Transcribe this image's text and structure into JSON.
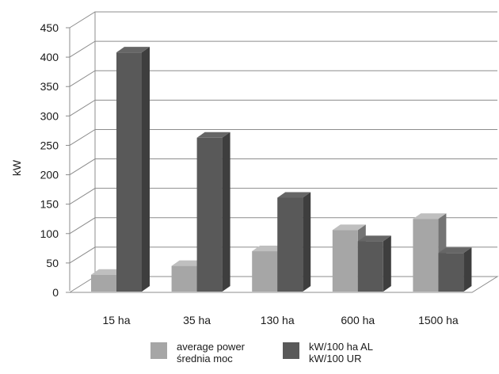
{
  "chart_data": {
    "type": "bar",
    "style": "3d-clustered-column",
    "ylabel": "kW",
    "xlabel": "",
    "ylim": [
      0,
      450
    ],
    "yticks": [
      "0",
      "50",
      "100",
      "150",
      "200",
      "250",
      "300",
      "350",
      "400",
      "450"
    ],
    "grid": true,
    "legend_position": "bottom",
    "categories": [
      "15 ha",
      "35 ha",
      "130 ha",
      "600 ha",
      "1500 ha"
    ],
    "series": [
      {
        "name": "average power\nśrednia moc",
        "color": "#a6a6a6",
        "values": [
          30,
          45,
          70,
          106,
          125
        ]
      },
      {
        "name": "kW/100 ha AL\nkW/100 UR",
        "color": "#595959",
        "values": [
          408,
          263,
          161,
          87,
          67
        ]
      }
    ]
  }
}
